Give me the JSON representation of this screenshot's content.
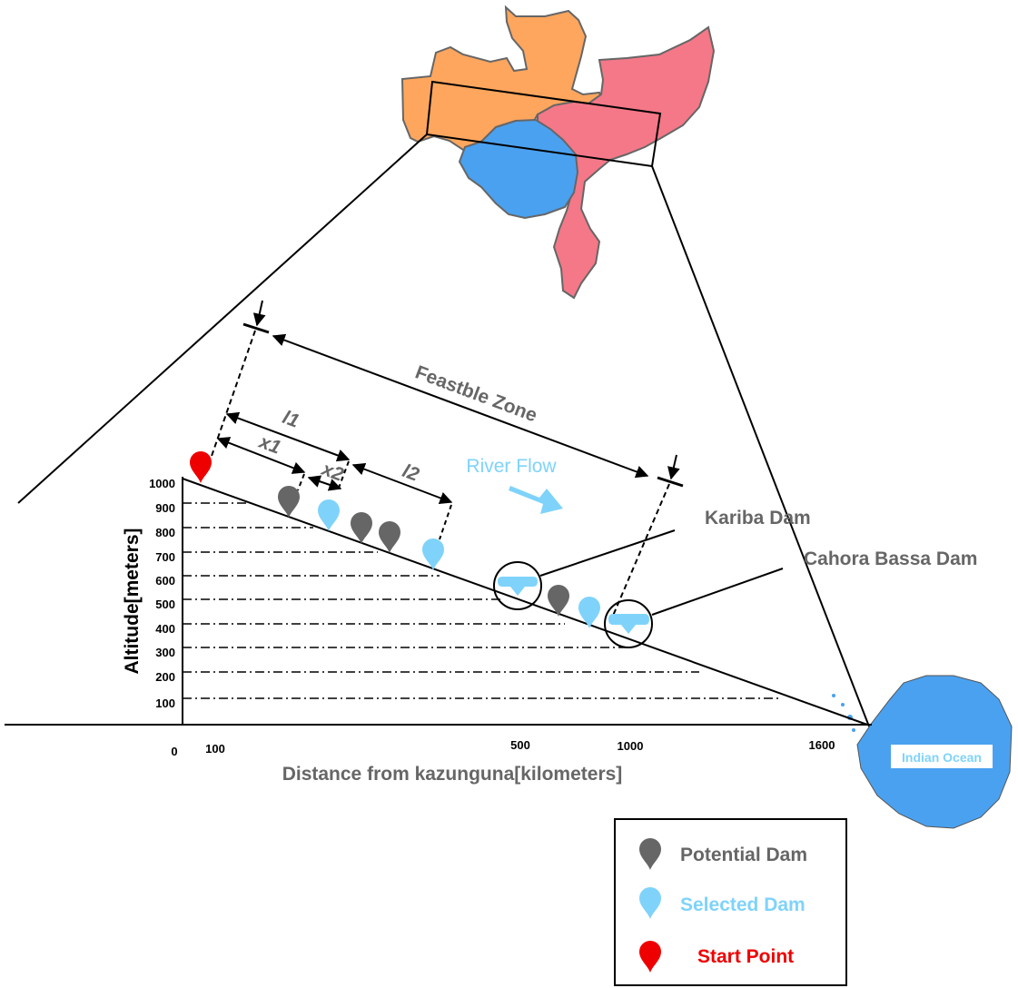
{
  "labels": {
    "feasible_zone": "Feastble Zone",
    "l1": "l1",
    "l2": "l2",
    "x1": "x1",
    "x2": "x2",
    "river_flow": "River Flow",
    "kariba": "Kariba Dam",
    "cahora": "Cahora Bassa Dam",
    "ocean": "Indian Ocean",
    "y_axis": "Altitude[meters]",
    "x_axis": "Distance from kazunguna[kilometers]"
  },
  "y_ticks": [
    "1000",
    "900",
    "800",
    "700",
    "600",
    "500",
    "400",
    "300",
    "200",
    "100"
  ],
  "x_ticks": [
    "0",
    "100",
    "500",
    "1000",
    "1600"
  ],
  "legend": {
    "potential": "Potential Dam",
    "selected": "Selected Dam",
    "start": "Start Point"
  },
  "colors": {
    "potential": "#666666",
    "selected": "#7fd3fb",
    "start": "#ee0000",
    "country_orange": "#fea65e",
    "country_pink": "#f47888",
    "country_blue": "#4aa1f0",
    "river_flow": "#7fd3fb"
  }
}
